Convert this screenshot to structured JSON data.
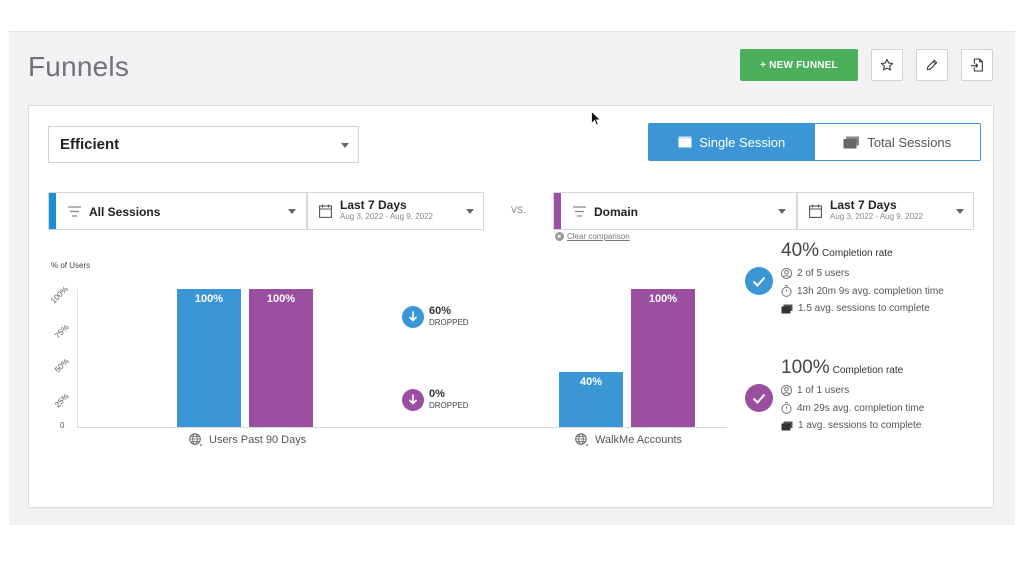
{
  "page": {
    "title": "Funnels"
  },
  "toolbar": {
    "new_funnel_label": "+ NEW FUNNEL"
  },
  "funnel_select": {
    "value": "Efficient"
  },
  "session_toggle": {
    "single": "Single Session",
    "total": "Total Sessions",
    "active": "single"
  },
  "filters": {
    "left": {
      "segment": "All Sessions",
      "date_main": "Last 7 Days",
      "date_sub": "Aug 3, 2022 - Aug 9, 2022",
      "color": "#1a8fd6"
    },
    "vs_label": "VS.",
    "right": {
      "segment": "Domain",
      "date_main": "Last 7 Days",
      "date_sub": "Aug 3, 2022 - Aug 9, 2022",
      "color": "#9a4fa0"
    },
    "clear_label": "Clear comparison"
  },
  "chart_data": {
    "type": "bar",
    "ylabel": "% of Users",
    "ylim": [
      0,
      100
    ],
    "yticks": [
      "0",
      "25%",
      "50%",
      "75%",
      "100%"
    ],
    "categories": [
      "Users Past 90 Days",
      "WalkMe Accounts"
    ],
    "series": [
      {
        "values": [
          100,
          40
        ],
        "labels": [
          "100%",
          "40%"
        ],
        "color": "#3a96d4"
      },
      {
        "values": [
          100,
          100
        ],
        "labels": [
          "100%",
          "100%"
        ],
        "color": "#9a4fa0"
      }
    ]
  },
  "dropped": [
    {
      "pct": "60%",
      "word": "DROPPED",
      "color": "#3a96d4"
    },
    {
      "pct": "0%",
      "word": "DROPPED",
      "color": "#9a4fa0"
    }
  ],
  "stats": [
    {
      "rate": "40%",
      "rate_label": "Completion rate",
      "users": "2 of 5 users",
      "time": "13h 20m 9s avg. completion time",
      "sessions": "1.5 avg. sessions to complete",
      "color": "#3a96d4"
    },
    {
      "rate": "100%",
      "rate_label": "Completion rate",
      "users": "1 of 1 users",
      "time": "4m 29s avg. completion time",
      "sessions": "1 avg. sessions to complete",
      "color": "#9a4fa0"
    }
  ]
}
